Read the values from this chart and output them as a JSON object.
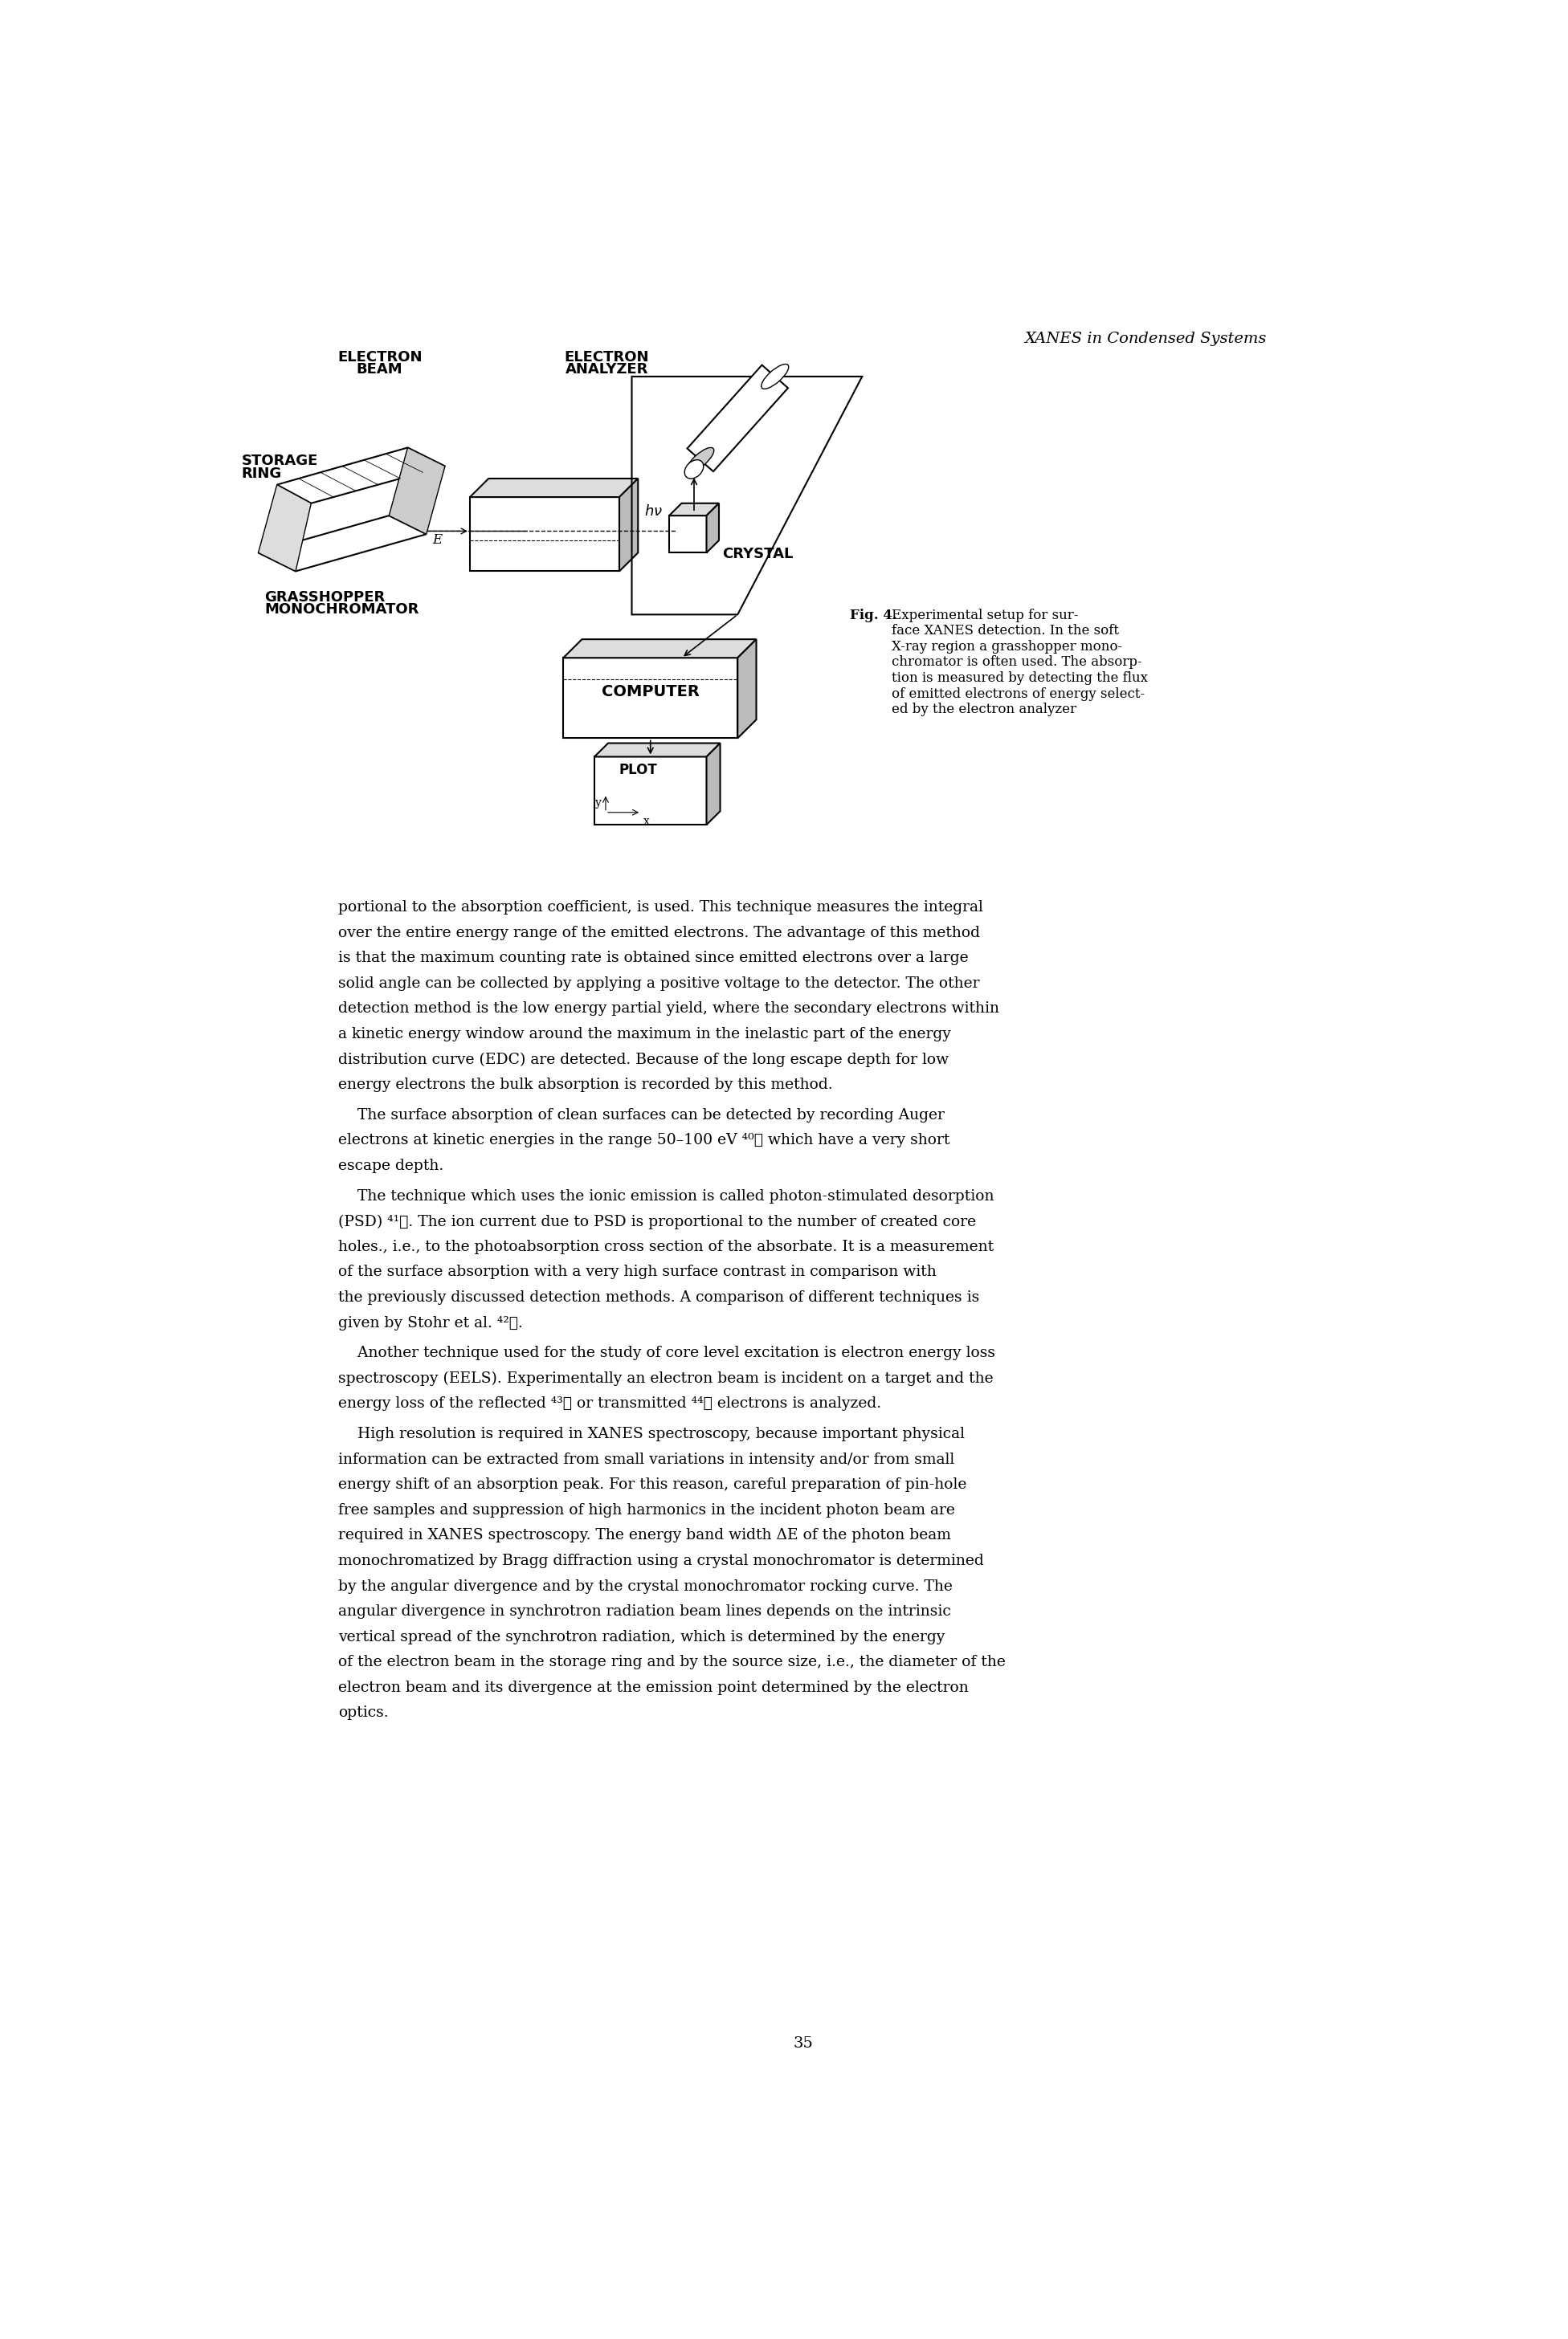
{
  "header": "XANES in Condensed Systems",
  "page_number": "35",
  "fig_caption_bold": "Fig. 4.",
  "fig_caption_rest": " Experimental setup for sur-\nface XANES detection. In the soft\nX-ray region a grasshopper mono-\nchromator is often used. The absorp-\ntion is measured by detecting the flux\nof emitted electrons of energy select-\ned by the electron analyzer",
  "body_text": [
    "portional to the absorption coefficient, is used. This technique measures the integral",
    "over the entire energy range of the emitted electrons. The advantage of this method",
    "is that the maximum counting rate is obtained since emitted electrons over a large",
    "solid angle can be collected by applying a positive voltage to the detector. The other",
    "detection method is the low energy partial yield, where the secondary electrons within",
    "a kinetic energy window around the maximum in the inelastic part of the energy",
    "distribution curve (EDC) are detected. Because of the long escape depth for low",
    "energy electrons the bulk absorption is recorded by this method.",
    "    The surface absorption of clean surfaces can be detected by recording Auger",
    "electrons at kinetic energies in the range 50–100 eV ⁴⁰⧠ which have a very short",
    "escape depth.",
    "    The technique which uses the ionic emission is called photon-stimulated desorption",
    "(PSD) ⁴¹⧠. The ion current due to PSD is proportional to the number of created core",
    "holes., i.e., to the photoabsorption cross section of the absorbate. It is a measurement",
    "of the surface absorption with a very high surface contrast in comparison with",
    "the previously discussed detection methods. A comparison of different techniques is",
    "given by Stohr et al. ⁴²⧠.",
    "    Another technique used for the study of core level excitation is electron energy loss",
    "spectroscopy (EELS). Experimentally an electron beam is incident on a target and the",
    "energy loss of the reflected ⁴³⧠ or transmitted ⁴⁴⧠ electrons is analyzed.",
    "    High resolution is required in XANES spectroscopy, because important physical",
    "information can be extracted from small variations in intensity and/or from small",
    "energy shift of an absorption peak. For this reason, careful preparation of pin-hole",
    "free samples and suppression of high harmonics in the incident photon beam are",
    "required in XANES spectroscopy. The energy band width ΔE of the photon beam",
    "monochromatized by Bragg diffraction using a crystal monochromator is determined",
    "by the angular divergence and by the crystal monochromator rocking curve. The",
    "angular divergence in synchrotron radiation beam lines depends on the intrinsic",
    "vertical spread of the synchrotron radiation, which is determined by the energy",
    "of the electron beam in the storage ring and by the source size, i.e., the diameter of the",
    "electron beam and its divergence at the emission point determined by the electron",
    "optics."
  ],
  "paragraph_after": [
    7,
    10,
    16,
    19
  ],
  "bg_color": "#ffffff",
  "text_color": "#000000"
}
